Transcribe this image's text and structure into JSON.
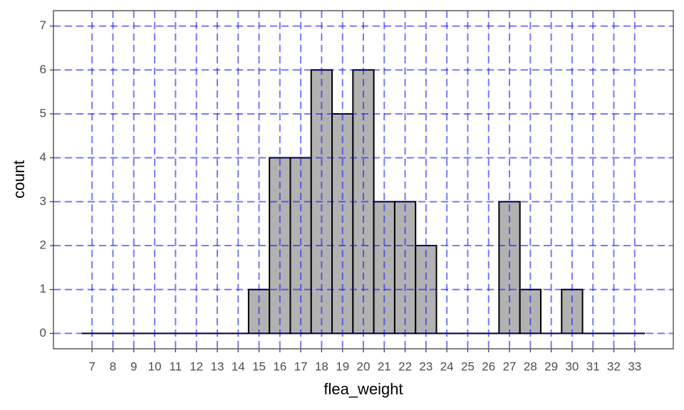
{
  "chart_data": {
    "type": "histogram",
    "bins": [
      6.5,
      7.5,
      8.5,
      9.5,
      10.5,
      11.5,
      12.5,
      13.5,
      14.5,
      15.5,
      16.5,
      17.5,
      18.5,
      19.5,
      20.5,
      21.5,
      22.5,
      23.5,
      24.5,
      25.5,
      26.5,
      27.5,
      28.5,
      29.5,
      30.5,
      31.5,
      32.5,
      33.5
    ],
    "values": [
      0,
      0,
      0,
      0,
      0,
      0,
      0,
      0,
      1,
      4,
      4,
      6,
      5,
      6,
      3,
      3,
      2,
      0,
      0,
      0,
      3,
      1,
      0,
      1,
      0,
      0,
      0
    ],
    "color": "#b2b2b2",
    "edgecolor": "#000000",
    "xlim": [
      5.15,
      34.85
    ],
    "ylim": [
      -0.35,
      7.35
    ],
    "xticks": [
      7,
      8,
      9,
      10,
      11,
      12,
      13,
      14,
      15,
      16,
      17,
      18,
      19,
      20,
      21,
      22,
      23,
      24,
      25,
      26,
      27,
      28,
      29,
      30,
      31,
      32,
      33
    ],
    "yticks": [
      0,
      1,
      2,
      3,
      4,
      5,
      6,
      7
    ],
    "xlabel": "flea_weight",
    "ylabel": "count",
    "grid": true,
    "guide_line_color": "#0000ff"
  }
}
